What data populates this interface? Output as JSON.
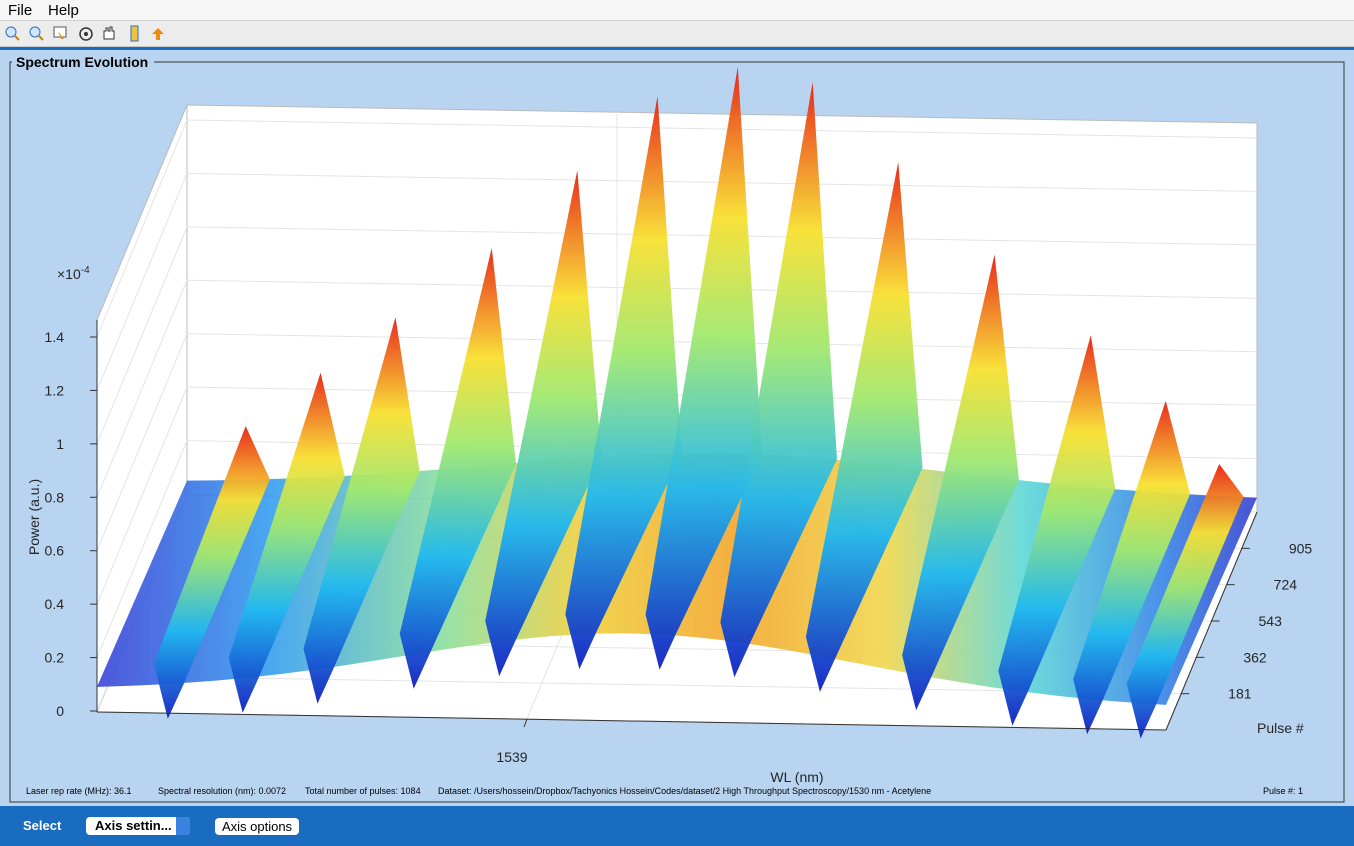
{
  "menu": [
    "File",
    "Help"
  ],
  "panel": {
    "title": "Spectrum Evolution"
  },
  "plot": {
    "z_exponent_base": "×10",
    "z_exponent_power": "-4",
    "z_ticks": [
      0,
      0.2,
      0.4,
      0.6,
      0.8,
      1,
      1.2,
      1.4
    ],
    "x_ticks": [
      1539
    ],
    "y_ticks": [
      181,
      362,
      543,
      724,
      905
    ],
    "z_label": "Power (a.u.)",
    "x_label": "WL (nm)",
    "y_label": "Pulse #"
  },
  "info": {
    "rep_rate": "Laser rep rate (MHz): 36.1",
    "resolution": "Spectral resolution (nm): 0.0072",
    "pulses": "Total number of pulses: 1084",
    "dataset": "Dataset:  /Users/hossein/Dropbox/Tachyonics Hossein/Codes/dataset/2 High Throughput Spectroscopy/1530 nm - Acetylene",
    "pulse": "Pulse #: 1"
  },
  "controls": {
    "select_label": "Select",
    "popup": "Axis settin...",
    "button": "Axis options"
  }
}
